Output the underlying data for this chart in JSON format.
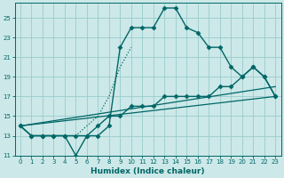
{
  "xlabel": "Humidex (Indice chaleur)",
  "bg_color": "#cce8e8",
  "grid_color": "#99cccc",
  "line_color": "#006666",
  "xlim": [
    -0.5,
    23.5
  ],
  "ylim": [
    11,
    26.5
  ],
  "xticks": [
    0,
    1,
    2,
    3,
    4,
    5,
    6,
    7,
    8,
    9,
    10,
    11,
    12,
    13,
    14,
    15,
    16,
    17,
    18,
    19,
    20,
    21,
    22,
    23
  ],
  "yticks": [
    11,
    13,
    15,
    17,
    19,
    21,
    23,
    25
  ],
  "series": [
    {
      "x": [
        0,
        1,
        2,
        3,
        4,
        5,
        6,
        7,
        8,
        9,
        10,
        11,
        12,
        13,
        14,
        15,
        16,
        17,
        18,
        19,
        20,
        21,
        22,
        23
      ],
      "y": [
        14,
        13,
        13,
        13,
        13,
        11,
        13,
        13,
        14,
        22,
        24,
        24,
        24,
        26,
        26,
        24,
        23.5,
        22,
        22,
        20,
        19,
        20,
        19,
        17
      ],
      "marker": "D",
      "marker_size": 2.5,
      "linewidth": 1.0,
      "dotted": false
    },
    {
      "x": [
        0,
        1,
        2,
        3,
        4,
        5,
        6,
        7,
        8,
        9,
        10
      ],
      "y": [
        14,
        13,
        13,
        13,
        13,
        13,
        14,
        15,
        17,
        20,
        22
      ],
      "marker": null,
      "marker_size": 0,
      "linewidth": 0.9,
      "dotted": true
    },
    {
      "x": [
        0,
        1,
        2,
        3,
        4,
        5,
        6,
        7,
        8,
        9,
        10,
        11,
        12,
        13,
        14,
        15,
        16,
        17,
        18,
        19,
        20,
        21,
        22,
        23
      ],
      "y": [
        14,
        13,
        13,
        13,
        13,
        13,
        13,
        14,
        15,
        15,
        16,
        16,
        16,
        17,
        17,
        17,
        17,
        17,
        18,
        18,
        19,
        20,
        19,
        17
      ],
      "marker": "D",
      "marker_size": 2.5,
      "linewidth": 1.0,
      "dotted": false
    },
    {
      "x": [
        0,
        23
      ],
      "y": [
        14,
        17
      ],
      "marker": null,
      "marker_size": 0,
      "linewidth": 0.9,
      "dotted": false
    },
    {
      "x": [
        0,
        23
      ],
      "y": [
        14,
        18
      ],
      "marker": null,
      "marker_size": 0,
      "linewidth": 0.9,
      "dotted": false
    }
  ]
}
